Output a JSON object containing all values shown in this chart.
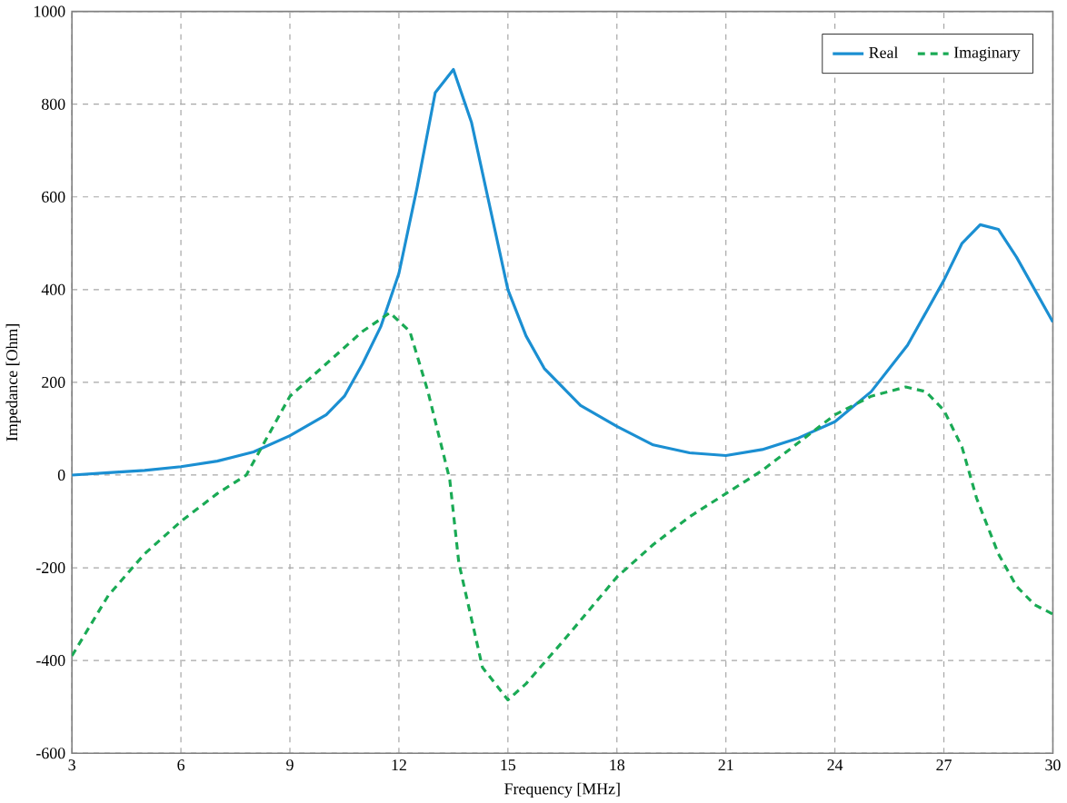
{
  "chart_data": {
    "type": "line",
    "xlabel": "Frequency [MHz]",
    "ylabel": "Impedance [Ohm]",
    "xlim": [
      3,
      30
    ],
    "ylim": [
      -600,
      1000
    ],
    "xticks": [
      3,
      6,
      9,
      12,
      15,
      18,
      21,
      24,
      27,
      30
    ],
    "yticks": [
      -600,
      -400,
      -200,
      0,
      200,
      400,
      600,
      800,
      1000
    ],
    "grid": true,
    "legend": "top right",
    "marker": "none",
    "series": [
      {
        "name": "Real",
        "color": "#1b8fd2",
        "line_style": "solid",
        "x": [
          3,
          4,
          5,
          6,
          7,
          8,
          9,
          10,
          10.5,
          11,
          11.5,
          12,
          12.5,
          13,
          13.5,
          14,
          14.5,
          15,
          15.5,
          16,
          17,
          18,
          19,
          20,
          21,
          22,
          23,
          24,
          25,
          26,
          27,
          27.5,
          28,
          28.5,
          29,
          29.5,
          30
        ],
        "values": [
          0,
          5,
          10,
          18,
          30,
          50,
          85,
          130,
          170,
          240,
          320,
          435,
          620,
          825,
          875,
          760,
          580,
          400,
          300,
          230,
          150,
          105,
          65,
          48,
          42,
          55,
          80,
          115,
          180,
          280,
          420,
          500,
          540,
          530,
          470,
          400,
          330
        ]
      },
      {
        "name": "Imaginary",
        "color": "#1aaa55",
        "line_style": "dashed",
        "x": [
          3,
          4,
          5,
          6,
          7,
          7.8,
          9,
          10,
          11,
          11.75,
          12.3,
          12.8,
          13.4,
          13.65,
          14.3,
          15,
          15.5,
          16.5,
          18,
          19,
          20,
          21,
          22,
          23,
          24,
          25,
          25.95,
          26.5,
          27,
          27.5,
          27.9,
          28.5,
          29,
          29.5,
          30
        ],
        "values": [
          -390,
          -260,
          -170,
          -100,
          -40,
          0,
          170,
          240,
          310,
          350,
          310,
          180,
          -10,
          -190,
          -415,
          -485,
          -450,
          -360,
          -220,
          -150,
          -90,
          -40,
          10,
          70,
          130,
          170,
          190,
          180,
          140,
          60,
          -50,
          -170,
          -240,
          -280,
          -300
        ]
      }
    ]
  }
}
